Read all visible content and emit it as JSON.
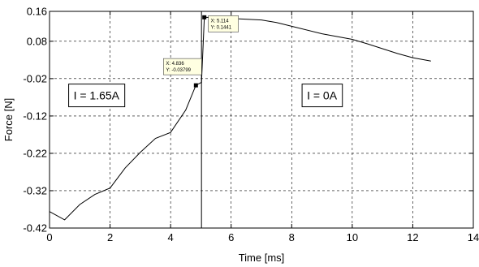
{
  "chart_data": {
    "type": "line",
    "xlabel": "Time [ms]",
    "ylabel": "Force [N]",
    "xlim": [
      0,
      14
    ],
    "ylim": [
      -0.42,
      0.16
    ],
    "xticks": [
      0,
      2,
      4,
      6,
      8,
      10,
      12,
      14
    ],
    "yticks": [
      0.16,
      0.08,
      -0.02,
      -0.12,
      -0.22,
      -0.32,
      -0.42
    ],
    "ytick_labels": [
      "0.16",
      "0.08",
      "-0.02",
      "-0.12",
      "-0.22",
      "-0.32",
      "-0.42"
    ],
    "grid": true,
    "grid_style": "dashed",
    "series": [
      {
        "color": "#000000",
        "x": [
          0,
          0.5,
          1.0,
          1.5,
          2.0,
          2.5,
          3.0,
          3.5,
          4.0,
          4.5,
          4.836,
          5.02,
          5.114,
          5.5,
          6.0,
          7.0,
          7.5,
          8.0,
          9.0,
          10.0,
          10.5,
          11.0,
          11.5,
          12.0,
          12.6
        ],
        "y": [
          -0.376,
          -0.398,
          -0.357,
          -0.33,
          -0.313,
          -0.259,
          -0.217,
          -0.18,
          -0.164,
          -0.104,
          -0.03799,
          -0.03,
          0.1441,
          0.1435,
          0.141,
          0.137,
          0.13,
          0.12,
          0.1,
          0.085,
          0.073,
          0.06,
          0.047,
          0.036,
          0.027
        ]
      }
    ],
    "vertical_line": {
      "x": 5.02,
      "color": "#000000"
    },
    "datatips": [
      {
        "x": 4.836,
        "y": -0.03799,
        "x_text": "X: 4.836",
        "y_text": "Y: -0.03799"
      },
      {
        "x": 5.114,
        "y": 0.1441,
        "x_text": "X: 5.114",
        "y_text": "Y: 0.1441"
      }
    ],
    "annotations": [
      {
        "text": "I = 1.65A",
        "x": 1.55,
        "y": -0.065
      },
      {
        "text": "I = 0A",
        "x": 9.0,
        "y": -0.065
      }
    ]
  }
}
